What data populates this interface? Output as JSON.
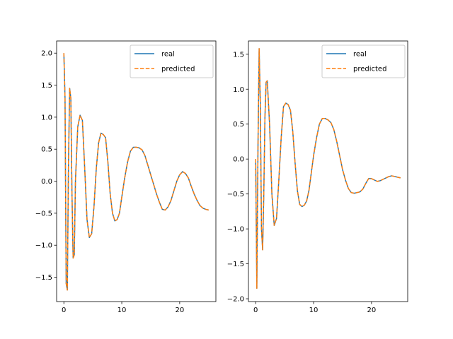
{
  "chart_data": [
    {
      "type": "line",
      "title": "",
      "xlabel": "",
      "ylabel": "",
      "xlim": [
        -1.25,
        26.25
      ],
      "ylim": [
        -1.88,
        2.19
      ],
      "xticks": [
        0,
        10,
        20
      ],
      "xtick_labels": [
        "0",
        "10",
        "20"
      ],
      "yticks": [
        -1.5,
        -1.0,
        -0.5,
        0.0,
        0.5,
        1.0,
        1.5,
        2.0
      ],
      "ytick_labels": [
        "−1.5",
        "−1.0",
        "−0.5",
        "0.0",
        "0.5",
        "1.0",
        "1.5",
        "2.0"
      ],
      "grid": false,
      "legend_position": "top-right",
      "series": [
        {
          "name": "real",
          "color": "#1f77b4",
          "style": "solid",
          "x": [
            0.0,
            0.2,
            0.4,
            0.6,
            0.8,
            1.0,
            1.2,
            1.4,
            1.6,
            1.8,
            2.0,
            2.4,
            2.8,
            3.2,
            3.6,
            4.0,
            4.4,
            4.8,
            5.2,
            5.6,
            6.0,
            6.4,
            6.8,
            7.2,
            7.6,
            8.0,
            8.4,
            8.8,
            9.2,
            9.6,
            10.0,
            10.5,
            11.0,
            11.5,
            12.0,
            12.5,
            13.0,
            13.5,
            14.0,
            14.5,
            15.0,
            15.5,
            16.0,
            16.5,
            17.0,
            17.5,
            18.0,
            18.5,
            19.0,
            19.5,
            20.0,
            20.5,
            21.0,
            21.5,
            22.0,
            22.5,
            23.0,
            23.5,
            24.0,
            24.5,
            25.0
          ],
          "y": [
            2.0,
            1.3,
            -1.6,
            -1.7,
            0.3,
            1.45,
            1.3,
            -0.2,
            -1.2,
            -1.15,
            0.0,
            0.85,
            1.03,
            0.95,
            0.2,
            -0.6,
            -0.88,
            -0.82,
            -0.4,
            0.2,
            0.6,
            0.75,
            0.73,
            0.68,
            0.3,
            -0.2,
            -0.5,
            -0.62,
            -0.6,
            -0.5,
            -0.25,
            0.05,
            0.3,
            0.47,
            0.53,
            0.53,
            0.52,
            0.49,
            0.4,
            0.25,
            0.1,
            -0.05,
            -0.2,
            -0.33,
            -0.44,
            -0.45,
            -0.4,
            -0.3,
            -0.15,
            0.0,
            0.1,
            0.15,
            0.12,
            0.05,
            -0.08,
            -0.2,
            -0.3,
            -0.38,
            -0.42,
            -0.44,
            -0.45
          ]
        },
        {
          "name": "predicted",
          "color": "#ff7f0e",
          "style": "dashed",
          "x": [
            0.0,
            0.2,
            0.4,
            0.6,
            0.8,
            1.0,
            1.2,
            1.4,
            1.6,
            1.8,
            2.0,
            2.4,
            2.8,
            3.2,
            3.6,
            4.0,
            4.4,
            4.8,
            5.2,
            5.6,
            6.0,
            6.4,
            6.8,
            7.2,
            7.6,
            8.0,
            8.4,
            8.8,
            9.2,
            9.6,
            10.0,
            10.5,
            11.0,
            11.5,
            12.0,
            12.5,
            13.0,
            13.5,
            14.0,
            14.5,
            15.0,
            15.5,
            16.0,
            16.5,
            17.0,
            17.5,
            18.0,
            18.5,
            19.0,
            19.5,
            20.0,
            20.5,
            21.0,
            21.5,
            22.0,
            22.5,
            23.0,
            23.5,
            24.0,
            24.5,
            25.0
          ],
          "y": [
            2.0,
            1.3,
            -1.6,
            -1.7,
            0.3,
            1.45,
            1.3,
            -0.2,
            -1.2,
            -1.15,
            0.0,
            0.85,
            1.03,
            0.95,
            0.2,
            -0.6,
            -0.88,
            -0.82,
            -0.4,
            0.2,
            0.6,
            0.75,
            0.73,
            0.68,
            0.3,
            -0.2,
            -0.5,
            -0.62,
            -0.6,
            -0.5,
            -0.25,
            0.05,
            0.3,
            0.47,
            0.53,
            0.53,
            0.52,
            0.49,
            0.4,
            0.25,
            0.1,
            -0.05,
            -0.2,
            -0.33,
            -0.44,
            -0.45,
            -0.4,
            -0.3,
            -0.15,
            0.0,
            0.1,
            0.15,
            0.12,
            0.05,
            -0.08,
            -0.2,
            -0.3,
            -0.38,
            -0.42,
            -0.44,
            -0.45
          ]
        }
      ]
    },
    {
      "type": "line",
      "title": "",
      "xlabel": "",
      "ylabel": "",
      "xlim": [
        -1.25,
        26.25
      ],
      "ylim": [
        -2.04,
        1.69
      ],
      "xticks": [
        0,
        10,
        20
      ],
      "xtick_labels": [
        "0",
        "10",
        "20"
      ],
      "yticks": [
        -2.0,
        -1.5,
        -1.0,
        -0.5,
        0.0,
        0.5,
        1.0,
        1.5
      ],
      "ytick_labels": [
        "−2.0",
        "−1.5",
        "−1.0",
        "−0.5",
        "0.0",
        "0.5",
        "1.0",
        "1.5"
      ],
      "grid": false,
      "legend_position": "top-right",
      "series": [
        {
          "name": "real",
          "color": "#1f77b4",
          "style": "solid",
          "x": [
            0.0,
            0.2,
            0.4,
            0.6,
            0.8,
            1.0,
            1.2,
            1.4,
            1.6,
            1.8,
            2.0,
            2.4,
            2.8,
            3.2,
            3.6,
            4.0,
            4.4,
            4.8,
            5.2,
            5.6,
            6.0,
            6.4,
            6.8,
            7.2,
            7.6,
            8.0,
            8.4,
            8.8,
            9.2,
            9.6,
            10.0,
            10.5,
            11.0,
            11.5,
            12.0,
            12.5,
            13.0,
            13.5,
            14.0,
            14.5,
            15.0,
            15.5,
            16.0,
            16.5,
            17.0,
            17.5,
            18.0,
            18.5,
            19.0,
            19.5,
            20.0,
            20.5,
            21.0,
            21.5,
            22.0,
            22.5,
            23.0,
            23.5,
            24.0,
            24.5,
            25.0
          ],
          "y": [
            0.0,
            -1.85,
            0.2,
            1.58,
            0.8,
            -1.0,
            -1.3,
            -0.5,
            0.6,
            1.1,
            1.12,
            0.5,
            -0.5,
            -0.95,
            -0.85,
            -0.3,
            0.3,
            0.75,
            0.8,
            0.78,
            0.7,
            0.4,
            -0.05,
            -0.45,
            -0.65,
            -0.68,
            -0.66,
            -0.6,
            -0.45,
            -0.2,
            0.05,
            0.3,
            0.5,
            0.58,
            0.58,
            0.56,
            0.52,
            0.42,
            0.25,
            0.05,
            -0.15,
            -0.3,
            -0.42,
            -0.48,
            -0.49,
            -0.48,
            -0.47,
            -0.43,
            -0.35,
            -0.28,
            -0.28,
            -0.3,
            -0.32,
            -0.31,
            -0.29,
            -0.27,
            -0.25,
            -0.24,
            -0.25,
            -0.26,
            -0.27
          ]
        },
        {
          "name": "predicted",
          "color": "#ff7f0e",
          "style": "dashed",
          "x": [
            0.0,
            0.2,
            0.4,
            0.6,
            0.8,
            1.0,
            1.2,
            1.4,
            1.6,
            1.8,
            2.0,
            2.4,
            2.8,
            3.2,
            3.6,
            4.0,
            4.4,
            4.8,
            5.2,
            5.6,
            6.0,
            6.4,
            6.8,
            7.2,
            7.6,
            8.0,
            8.4,
            8.8,
            9.2,
            9.6,
            10.0,
            10.5,
            11.0,
            11.5,
            12.0,
            12.5,
            13.0,
            13.5,
            14.0,
            14.5,
            15.0,
            15.5,
            16.0,
            16.5,
            17.0,
            17.5,
            18.0,
            18.5,
            19.0,
            19.5,
            20.0,
            20.5,
            21.0,
            21.5,
            22.0,
            22.5,
            23.0,
            23.5,
            24.0,
            24.5,
            25.0
          ],
          "y": [
            0.0,
            -1.85,
            0.2,
            1.58,
            0.8,
            -1.0,
            -1.3,
            -0.5,
            0.6,
            1.1,
            1.12,
            0.5,
            -0.5,
            -0.95,
            -0.85,
            -0.3,
            0.3,
            0.75,
            0.8,
            0.78,
            0.7,
            0.4,
            -0.05,
            -0.45,
            -0.65,
            -0.68,
            -0.66,
            -0.6,
            -0.45,
            -0.2,
            0.05,
            0.3,
            0.5,
            0.58,
            0.58,
            0.56,
            0.52,
            0.42,
            0.25,
            0.05,
            -0.15,
            -0.3,
            -0.42,
            -0.48,
            -0.49,
            -0.48,
            -0.47,
            -0.43,
            -0.35,
            -0.28,
            -0.28,
            -0.3,
            -0.32,
            -0.31,
            -0.29,
            -0.27,
            -0.25,
            -0.24,
            -0.25,
            -0.26,
            -0.27
          ]
        }
      ]
    }
  ]
}
